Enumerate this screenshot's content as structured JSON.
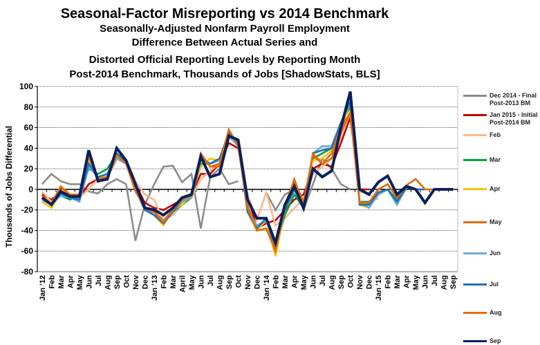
{
  "chart_data": {
    "type": "line",
    "title": "Seasonal-Factor Misreporting vs 2014 Benchmark",
    "subtitle_lines": [
      "Seasonally-Adjusted Nonfarm Payroll Employment",
      "Difference Between Actual Series and",
      "Distorted Official Reporting Levels by Reporting Month",
      "Post-2014 Benchmark, Thousands of Jobs [ShadowStats, BLS]"
    ],
    "xlabel": "",
    "ylabel": "Thousands of Jobs Differential",
    "ylim": [
      -80,
      100
    ],
    "yticks": [
      100,
      80,
      60,
      40,
      20,
      0,
      -20,
      -40,
      -60,
      -80
    ],
    "grid": true,
    "legend_position": "right",
    "categories": [
      "Jan '12",
      "Feb",
      "Mar",
      "Apr",
      "May",
      "Jun",
      "Jul",
      "Aug",
      "Sep",
      "Oct",
      "Nov",
      "Dec",
      "Jan '13",
      "Feb",
      "Mar",
      "April",
      "May",
      "Jun",
      "Jul",
      "Aug",
      "Sep",
      "Oct",
      "Nov",
      "Dec",
      "Jan '14",
      "Feb",
      "Mar",
      "Apr",
      "May",
      "Jun",
      "Jul",
      "Aug",
      "Sep",
      "Oct",
      "Nov",
      "Dec",
      "Jan '15",
      "Feb",
      "Mar",
      "Apr",
      "May",
      "Jun",
      "Jul",
      "Aug",
      "Sep"
    ],
    "series": [
      {
        "name": "Dec 2014 - Final Post-2013 BM",
        "color": "#8c8c8c",
        "values": [
          5,
          15,
          8,
          5,
          5,
          -2,
          -4,
          5,
          10,
          5,
          -50,
          -15,
          5,
          22,
          23,
          7,
          15,
          -38,
          12,
          20,
          5,
          8,
          null,
          null,
          -3,
          -20,
          -5,
          0,
          -20,
          5,
          30,
          20,
          5,
          0,
          null,
          null,
          null,
          null,
          null,
          null,
          null,
          null,
          null,
          null,
          null
        ]
      },
      {
        "name": "Jan 2015 - Initial Post-2014 BM",
        "color": "#c00000",
        "values": [
          -5,
          -10,
          -3,
          -5,
          -8,
          5,
          10,
          12,
          30,
          25,
          5,
          -13,
          -18,
          -20,
          -15,
          -10,
          -5,
          15,
          15,
          25,
          45,
          40,
          -5,
          -38,
          -33,
          -30,
          -20,
          -10,
          -5,
          20,
          25,
          22,
          45,
          70,
          0,
          0,
          null,
          null,
          null,
          null,
          null,
          null,
          null,
          null,
          null
        ]
      },
      {
        "name": "Feb",
        "color": "#fbb98a",
        "values": [
          -2,
          -12,
          -4,
          -6,
          -8,
          0,
          10,
          15,
          30,
          28,
          8,
          -5,
          -10,
          -30,
          -25,
          -15,
          -8,
          10,
          18,
          25,
          50,
          45,
          -5,
          -30,
          -3,
          -35,
          -28,
          -18,
          -10,
          15,
          22,
          30,
          50,
          75,
          -2,
          -5,
          -10,
          null,
          null,
          null,
          null,
          null,
          null,
          null,
          null
        ]
      },
      {
        "name": "Mar",
        "color": "#00a03c",
        "values": [
          -10,
          -15,
          -6,
          -10,
          -5,
          20,
          15,
          20,
          35,
          28,
          0,
          -18,
          -22,
          -33,
          -22,
          -15,
          -8,
          25,
          25,
          28,
          55,
          45,
          -20,
          -38,
          -30,
          -58,
          -25,
          -5,
          -18,
          30,
          35,
          40,
          65,
          80,
          -12,
          -12,
          -5,
          0,
          -10,
          0,
          null,
          null,
          null,
          null,
          null
        ]
      },
      {
        "name": "Apr",
        "color": "#ffc000",
        "values": [
          -12,
          -18,
          -4,
          -8,
          -8,
          28,
          10,
          15,
          32,
          25,
          2,
          -18,
          -25,
          -35,
          -20,
          -15,
          -5,
          22,
          30,
          28,
          50,
          45,
          -22,
          -40,
          -30,
          -65,
          -20,
          0,
          -15,
          28,
          30,
          38,
          60,
          85,
          -15,
          -18,
          -5,
          0,
          -12,
          0,
          null,
          null,
          null,
          null,
          null
        ]
      },
      {
        "name": "May",
        "color": "#e36c09",
        "values": [
          -8,
          -15,
          2,
          -6,
          -6,
          32,
          10,
          12,
          30,
          25,
          0,
          -20,
          -22,
          -30,
          -20,
          -12,
          -8,
          35,
          22,
          22,
          58,
          42,
          -15,
          -40,
          -38,
          -60,
          -15,
          8,
          -12,
          33,
          25,
          30,
          55,
          75,
          -12,
          -15,
          0,
          5,
          -8,
          4,
          null,
          null,
          null,
          null,
          null
        ]
      },
      {
        "name": "Jun",
        "color": "#6fa8dc",
        "values": [
          -10,
          -15,
          -6,
          -8,
          -12,
          22,
          12,
          15,
          30,
          25,
          0,
          -18,
          -25,
          -30,
          -22,
          -12,
          -8,
          28,
          25,
          28,
          52,
          42,
          -20,
          -35,
          -30,
          -55,
          -18,
          0,
          -18,
          35,
          42,
          42,
          65,
          85,
          -12,
          -18,
          -5,
          0,
          -15,
          2,
          0,
          null,
          null,
          null,
          null
        ]
      },
      {
        "name": "Jul",
        "color": "#1f6fbf",
        "values": [
          -8,
          -15,
          -4,
          -8,
          -10,
          25,
          12,
          15,
          35,
          25,
          0,
          -20,
          -25,
          -33,
          -22,
          -10,
          -5,
          30,
          25,
          30,
          55,
          45,
          -22,
          -38,
          -28,
          -58,
          -20,
          0,
          -15,
          35,
          38,
          40,
          65,
          85,
          -15,
          -15,
          -3,
          0,
          -12,
          2,
          0,
          0,
          null,
          null,
          null
        ]
      },
      {
        "name": "Aug",
        "color": "#e36c09",
        "values": [
          -6,
          -14,
          3,
          -5,
          -5,
          35,
          10,
          12,
          33,
          25,
          -2,
          -18,
          -22,
          -32,
          -20,
          -10,
          -6,
          35,
          22,
          25,
          58,
          42,
          -18,
          -40,
          -38,
          -58,
          -18,
          10,
          -15,
          35,
          25,
          35,
          60,
          75,
          -13,
          -13,
          0,
          5,
          -8,
          4,
          10,
          0,
          0,
          null,
          null
        ]
      },
      {
        "name": "Sep",
        "color": "#0a1f5c",
        "values": [
          -8,
          -15,
          -2,
          -7,
          -7,
          38,
          8,
          10,
          40,
          28,
          5,
          -18,
          -20,
          -25,
          -18,
          -8,
          -5,
          32,
          12,
          15,
          52,
          48,
          -10,
          -28,
          -28,
          -52,
          -15,
          3,
          -18,
          20,
          12,
          18,
          60,
          95,
          0,
          -5,
          7,
          13,
          -5,
          3,
          0,
          -13,
          0,
          0,
          0
        ]
      }
    ]
  }
}
